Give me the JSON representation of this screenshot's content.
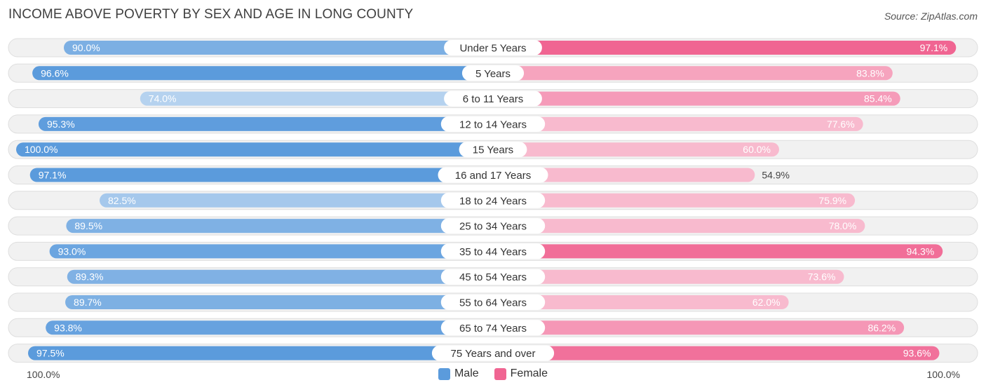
{
  "title": "INCOME ABOVE POVERTY BY SEX AND AGE IN LONG COUNTY",
  "source": "Source: ZipAtlas.com",
  "colors": {
    "male": "#5b9bdc",
    "female": "#f06592",
    "track": "#f1f1f1",
    "track_border": "#dedede"
  },
  "legend": {
    "male_label": "Male",
    "female_label": "Female"
  },
  "axis": {
    "left_label": "100.0%",
    "right_label": "100.0%"
  },
  "chart_data": {
    "type": "bar",
    "orientation": "horizontal-diverging",
    "title": "INCOME ABOVE POVERTY BY SEX AND AGE IN LONG COUNTY",
    "xlim": [
      0,
      100
    ],
    "unit": "%",
    "categories": [
      "Under 5 Years",
      "5 Years",
      "6 to 11 Years",
      "12 to 14 Years",
      "15 Years",
      "16 and 17 Years",
      "18 to 24 Years",
      "25 to 34 Years",
      "35 to 44 Years",
      "45 to 54 Years",
      "55 to 64 Years",
      "65 to 74 Years",
      "75 Years and over"
    ],
    "series": [
      {
        "name": "Male",
        "values": [
          90.0,
          96.6,
          74.0,
          95.3,
          100.0,
          97.1,
          82.5,
          89.5,
          93.0,
          89.3,
          89.7,
          93.8,
          97.5
        ]
      },
      {
        "name": "Female",
        "values": [
          97.1,
          83.8,
          85.4,
          77.6,
          60.0,
          54.9,
          75.9,
          78.0,
          94.3,
          73.6,
          62.0,
          86.2,
          93.6
        ]
      }
    ],
    "legend_position": "bottom-center"
  }
}
